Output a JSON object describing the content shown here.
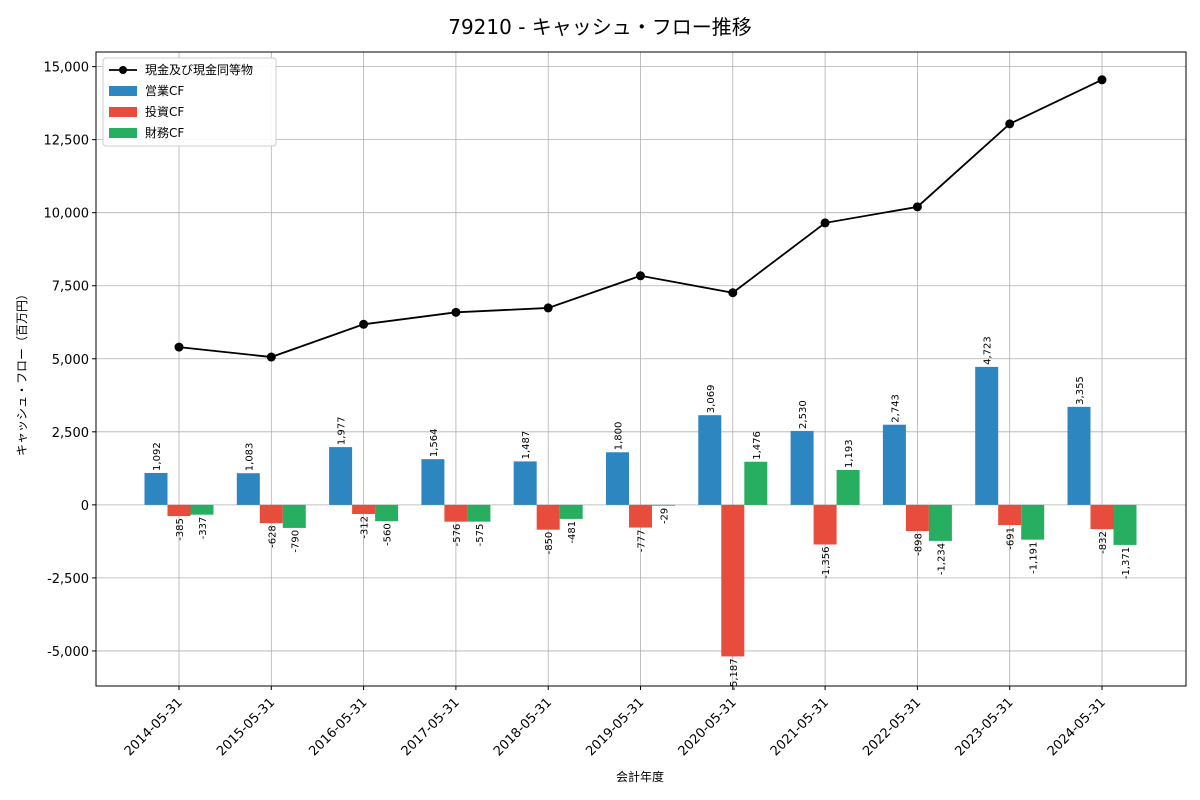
{
  "chart_data": {
    "type": "bar",
    "title": "79210 - キャッシュ・フロー推移",
    "xlabel": "会計年度",
    "ylabel": "キャッシュ・フロー（百万円）",
    "ylim": [
      -6200,
      15500
    ],
    "yticks": [
      -5000,
      -2500,
      0,
      2500,
      5000,
      7500,
      10000,
      12500,
      15000
    ],
    "ytick_labels": [
      "-5,000",
      "-2,500",
      "0",
      "2,500",
      "5,000",
      "7,500",
      "10,000",
      "12,500",
      "15,000"
    ],
    "grid": true,
    "legend_position": "top-left",
    "categories": [
      "2014-05-31",
      "2015-05-31",
      "2016-05-31",
      "2017-05-31",
      "2018-05-31",
      "2019-05-31",
      "2020-05-31",
      "2021-05-31",
      "2022-05-31",
      "2023-05-31",
      "2024-05-31"
    ],
    "series": [
      {
        "name": "営業CF",
        "kind": "bar",
        "color": "#2e86c1",
        "values": [
          1092,
          1083,
          1977,
          1564,
          1487,
          1800,
          3069,
          2530,
          2743,
          4723,
          3355
        ],
        "labels": [
          "1,092",
          "1,083",
          "1,977",
          "1,564",
          "1,487",
          "1,800",
          "3,069",
          "2,530",
          "2,743",
          "4,723",
          "3,355"
        ]
      },
      {
        "name": "投資CF",
        "kind": "bar",
        "color": "#e74c3c",
        "values": [
          -385,
          -628,
          -312,
          -576,
          -850,
          -777,
          -5187,
          -1356,
          -898,
          -691,
          -832
        ],
        "labels": [
          "-385",
          "-628",
          "-312",
          "-576",
          "-850",
          "-777",
          "-5,187",
          "-1,356",
          "-898",
          "-691",
          "-832"
        ]
      },
      {
        "name": "財務CF",
        "kind": "bar",
        "color": "#27ae60",
        "values": [
          -337,
          -790,
          -560,
          -575,
          -481,
          -29,
          1476,
          1193,
          -1234,
          -1191,
          -1371
        ],
        "labels": [
          "-337",
          "-790",
          "-560",
          "-575",
          "-481",
          "-29",
          "1,476",
          "1,193",
          "-1,234",
          "-1,191",
          "-1,371"
        ]
      },
      {
        "name": "現金及び現金同等物",
        "kind": "line",
        "color": "#000000",
        "values": [
          5400,
          5060,
          6180,
          6590,
          6740,
          7840,
          7260,
          9650,
          10200,
          13040,
          14550
        ]
      }
    ]
  }
}
